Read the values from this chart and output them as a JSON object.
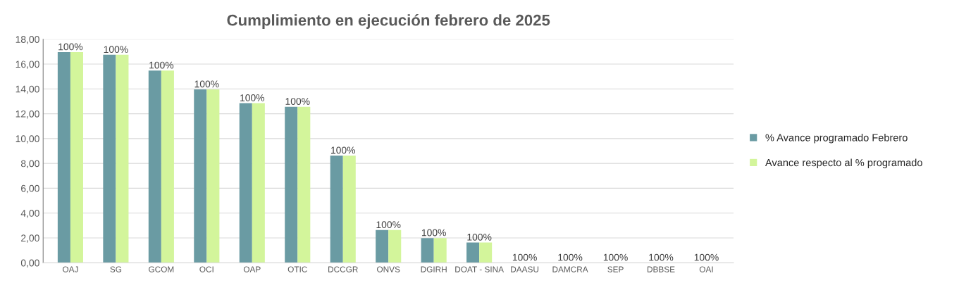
{
  "chart_data": {
    "type": "bar",
    "title": "Cumplimiento en ejecución febrero de 2025",
    "categories": [
      "OAJ",
      "SG",
      "GCOM",
      "OCI",
      "OAP",
      "OTIC",
      "DCCGR",
      "ONVS",
      "DGIRH",
      "DOAT - SINA",
      "DAASU",
      "DAMCRA",
      "SEP",
      "DBBSE",
      "OAI"
    ],
    "series": [
      {
        "name": "% Avance programado Febrero",
        "color": "#6a9ba3",
        "values": [
          16.96,
          16.75,
          15.48,
          13.96,
          12.85,
          12.56,
          8.63,
          2.63,
          1.99,
          1.63,
          0,
          0,
          0,
          0,
          0
        ]
      },
      {
        "name": "Avance respecto al % programado",
        "color": "#d3f59b",
        "values": [
          16.96,
          16.75,
          15.48,
          13.96,
          12.85,
          12.56,
          8.63,
          2.63,
          1.99,
          1.63,
          0,
          0,
          0,
          0,
          0
        ]
      }
    ],
    "ylim": [
      0,
      18
    ],
    "yticks": [
      {
        "value": 0,
        "label": "0,00"
      },
      {
        "value": 2,
        "label": "2,00"
      },
      {
        "value": 4,
        "label": "4,00"
      },
      {
        "value": 6,
        "label": "6,00"
      },
      {
        "value": 8,
        "label": "8,00"
      },
      {
        "value": 10,
        "label": "10,00"
      },
      {
        "value": 12,
        "label": "12,00"
      },
      {
        "value": 14,
        "label": "14,00"
      },
      {
        "value": 16,
        "label": "16,00"
      },
      {
        "value": 18,
        "label": "18,00"
      }
    ],
    "annotations": [
      {
        "text": "100%",
        "x": "OAJ",
        "y": 16.96
      },
      {
        "text": "100%",
        "x": "SG",
        "y": 16.75
      },
      {
        "text": "100%",
        "x": "GCOM",
        "y": 15.48
      },
      {
        "text": "100%",
        "x": "OCI",
        "y": 13.96
      },
      {
        "text": "100%",
        "x": "OAP",
        "y": 12.85
      },
      {
        "text": "100%",
        "x": "OTIC",
        "y": 12.56
      },
      {
        "text": "100%",
        "x": "DCCGR",
        "y": 8.63
      },
      {
        "text": "100%",
        "x": "ONVS",
        "y": 2.63
      },
      {
        "text": "100%",
        "x": "DGIRH",
        "y": 1.99
      },
      {
        "text": "100%",
        "x": "DOAT - SINA",
        "y": 1.63
      },
      {
        "text": "100%",
        "x": "DAASU",
        "y": 0
      },
      {
        "text": "100%",
        "x": "DAMCRA",
        "y": 0
      },
      {
        "text": "100%",
        "x": "SEP",
        "y": 0
      },
      {
        "text": "100%",
        "x": "DBBSE",
        "y": 0
      },
      {
        "text": "100%",
        "x": "OAI",
        "y": 0
      }
    ],
    "grid": "y",
    "legend": "right"
  }
}
